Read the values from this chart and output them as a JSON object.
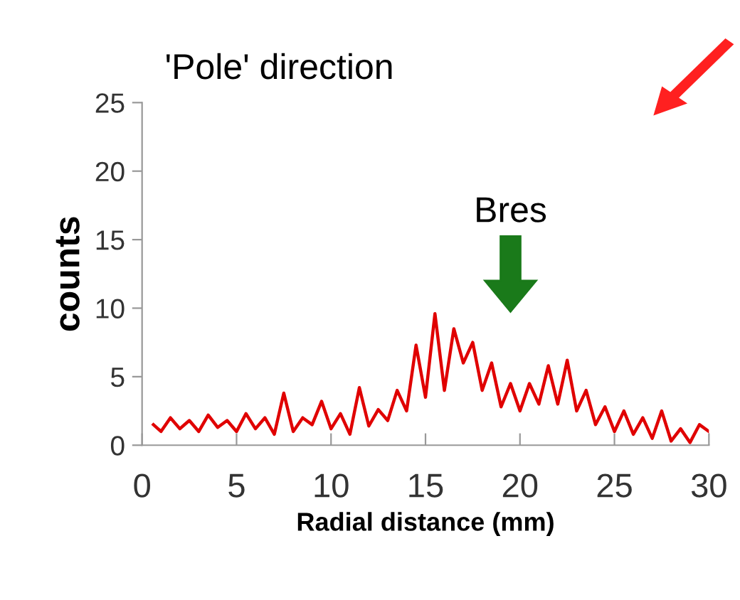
{
  "chart_data": {
    "type": "line",
    "title": "'Pole' direction",
    "xlabel": "Radial distance (mm)",
    "ylabel": "counts",
    "xlim": [
      0,
      30
    ],
    "ylim": [
      0,
      25
    ],
    "xticks": [
      0,
      5,
      10,
      15,
      20,
      25,
      30
    ],
    "yticks": [
      0,
      5,
      10,
      15,
      20,
      25
    ],
    "grid": false,
    "legend": false,
    "marker": "none",
    "line_style": "solid",
    "annotations": [
      "Bres"
    ],
    "series": [
      {
        "color": "#e00000",
        "x": [
          0.6,
          1,
          1.5,
          2,
          2.5,
          3,
          3.5,
          4,
          4.5,
          5,
          5.5,
          6,
          6.5,
          7,
          7.5,
          8,
          8.5,
          9,
          9.5,
          10,
          10.5,
          11,
          11.5,
          12,
          12.5,
          13,
          13.5,
          14,
          14.5,
          15,
          15.5,
          16,
          16.5,
          17,
          17.5,
          18,
          18.5,
          19,
          19.5,
          20,
          20.5,
          21,
          21.5,
          22,
          22.5,
          23,
          23.5,
          24,
          24.5,
          25,
          25.5,
          26,
          26.5,
          27,
          27.5,
          28,
          28.5,
          29,
          29.5,
          30
        ],
        "values": [
          1.5,
          1.0,
          2.0,
          1.2,
          1.8,
          1.0,
          2.2,
          1.3,
          1.8,
          1.0,
          2.3,
          1.2,
          2.0,
          0.8,
          3.8,
          1.0,
          2.0,
          1.5,
          3.2,
          1.2,
          2.3,
          0.8,
          4.2,
          1.4,
          2.6,
          1.8,
          4.0,
          2.5,
          7.3,
          3.5,
          9.6,
          4.0,
          8.5,
          6.0,
          7.5,
          4.0,
          6.0,
          2.8,
          4.5,
          2.5,
          4.5,
          3.0,
          5.8,
          3.0,
          6.2,
          2.5,
          4.0,
          1.5,
          2.8,
          1.0,
          2.5,
          0.8,
          2.0,
          0.5,
          2.5,
          0.3,
          1.2,
          0.2,
          1.5,
          1.0
        ]
      }
    ]
  }
}
